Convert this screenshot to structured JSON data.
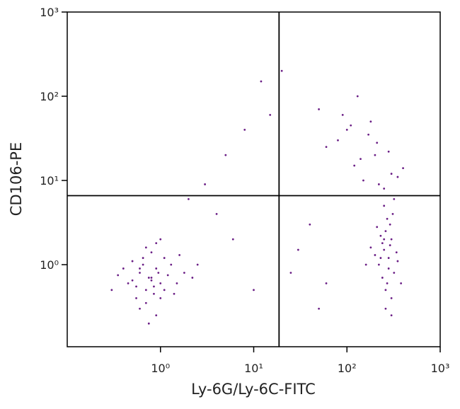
{
  "chart_data": {
    "type": "scatter",
    "x_label": "Ly-6G/Ly-6C-FITC",
    "y_label": "CD106-PE",
    "log_x": true,
    "log_y": true,
    "xlim": [
      0.1,
      1000
    ],
    "ylim": [
      0.106,
      1000
    ],
    "xticks": [
      {
        "value": 1,
        "label": "10⁰"
      },
      {
        "value": 10,
        "label": "10¹"
      },
      {
        "value": 100,
        "label": "10²"
      },
      {
        "value": 1000,
        "label": "10³"
      }
    ],
    "yticks": [
      {
        "value": 1,
        "label": "10⁰"
      },
      {
        "value": 10,
        "label": "10¹"
      },
      {
        "value": 100,
        "label": "10²"
      },
      {
        "value": 1000,
        "label": "10³"
      }
    ],
    "quadrant": {
      "x": 18.7,
      "y": 6.6
    },
    "color": "#6b1f86",
    "x": [
      0.8,
      0.6,
      1.0,
      0.7,
      0.9,
      0.5,
      1.2,
      0.65,
      0.85,
      0.75,
      1.1,
      0.55,
      0.95,
      0.7,
      0.4,
      1.5,
      0.8,
      0.6,
      1.3,
      0.9,
      0.45,
      1.8,
      0.7,
      1.0,
      0.35,
      0.85,
      1.6,
      0.6,
      0.75,
      2.2,
      0.5,
      1.1,
      0.9,
      0.3,
      0.8,
      1.4,
      0.65,
      2.5,
      0.55,
      1.0,
      250,
      280,
      300,
      220,
      260,
      320,
      240,
      290,
      200,
      350,
      270,
      310,
      230,
      260,
      180,
      300,
      250,
      280,
      340,
      210,
      260,
      290,
      240,
      320,
      270,
      160,
      300,
      250,
      380,
      230,
      150,
      200,
      120,
      250,
      80,
      300,
      180,
      60,
      220,
      100,
      140,
      400,
      90,
      170,
      280,
      50,
      130,
      210,
      350,
      110,
      5,
      8,
      3,
      12,
      20,
      2,
      15,
      40,
      25,
      6,
      10,
      30,
      4,
      60,
      50
    ],
    "y": [
      0.7,
      0.8,
      0.6,
      0.5,
      0.9,
      0.65,
      0.75,
      1.0,
      0.45,
      0.7,
      1.2,
      0.55,
      0.8,
      0.35,
      0.9,
      0.6,
      1.4,
      0.3,
      1.0,
      0.25,
      0.6,
      0.8,
      1.6,
      0.4,
      0.75,
      0.55,
      1.3,
      0.9,
      0.2,
      0.7,
      1.1,
      0.5,
      1.8,
      0.5,
      0.65,
      0.45,
      1.2,
      1.0,
      0.4,
      2.0,
      1.5,
      1.2,
      2.0,
      1.0,
      2.5,
      0.8,
      1.8,
      3.0,
      1.3,
      1.1,
      0.6,
      4.0,
      2.2,
      0.5,
      1.6,
      0.4,
      5.0,
      0.9,
      1.4,
      2.8,
      0.3,
      1.7,
      0.7,
      6.0,
      3.5,
      1.0,
      0.25,
      2.0,
      0.6,
      1.2,
      10,
      20,
      15,
      8,
      30,
      12,
      50,
      25,
      9,
      40,
      18,
      14,
      60,
      35,
      22,
      70,
      100,
      28,
      11,
      45,
      20,
      40,
      9,
      150,
      200,
      6,
      60,
      3,
      0.8,
      2,
      0.5,
      1.5,
      4,
      0.6,
      0.3
    ]
  }
}
